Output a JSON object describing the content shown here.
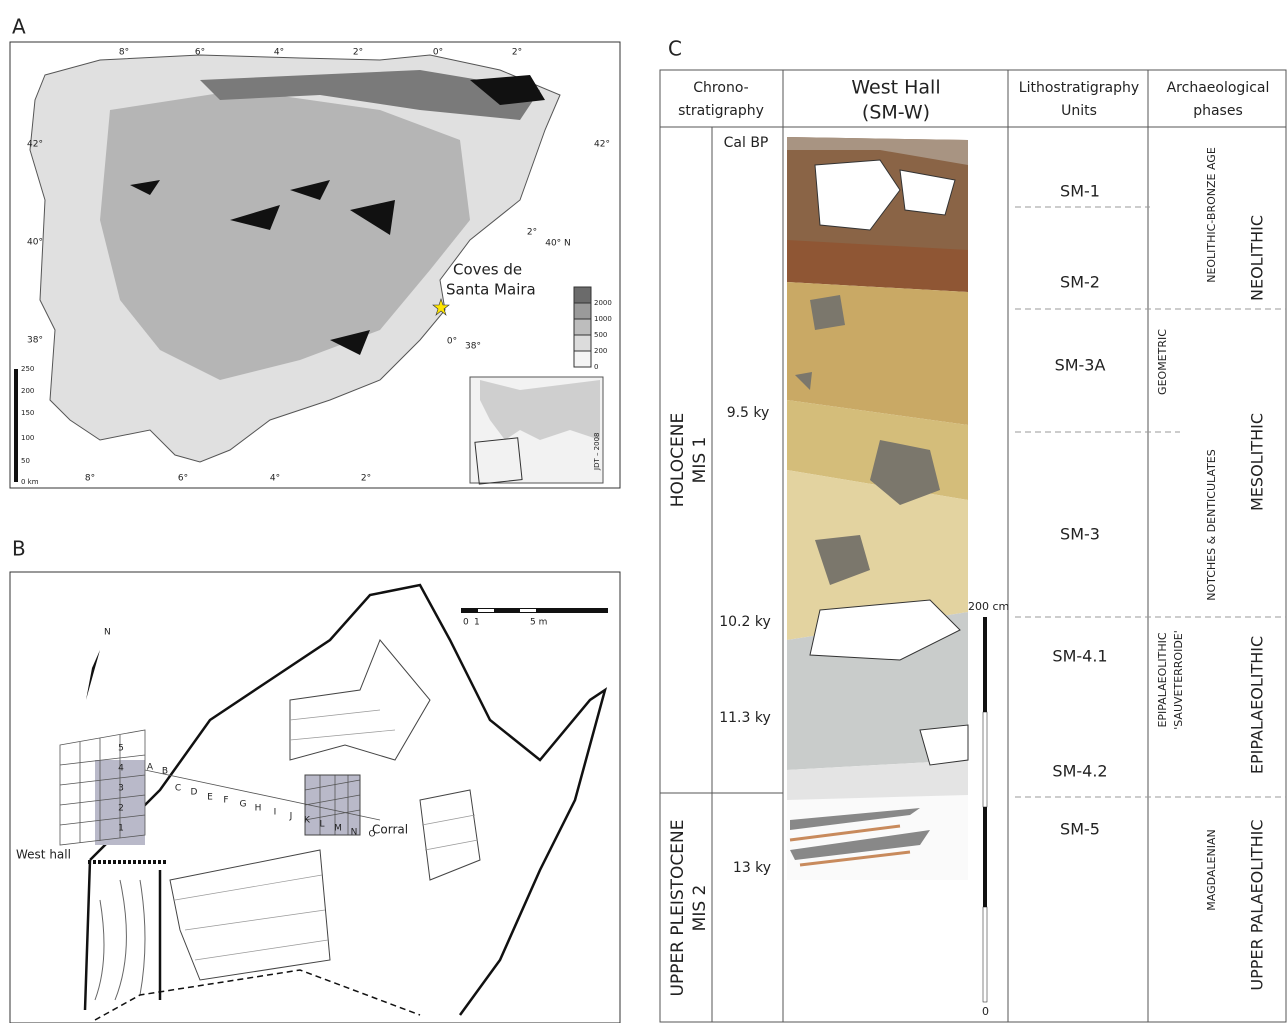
{
  "panel_a": {
    "label": "A",
    "site": [
      "Coves de",
      "Santa Maira"
    ],
    "longitudes_top": [
      "8°",
      "6°",
      "4°",
      "2°",
      "0°",
      "2°"
    ],
    "longitudes_bottom": [
      "8°",
      "6°",
      "4°",
      "2°"
    ],
    "latitudes_left": [
      "42°",
      "40°",
      "38°"
    ],
    "latitude_right": "42°",
    "inset_coords": [
      "2°",
      "40° N",
      "0°",
      "38°"
    ],
    "elevation_legend": [
      "2000",
      "1000",
      "500",
      "200",
      "0"
    ],
    "scale": [
      "250",
      "200",
      "150",
      "100",
      "50",
      "0 km"
    ],
    "credit": "JDT – 2008"
  },
  "panel_b": {
    "label": "B",
    "north": "N",
    "scale": [
      "0",
      "1",
      "5 m"
    ],
    "rows": [
      "5",
      "4",
      "3",
      "2",
      "1"
    ],
    "columns": [
      "A",
      "B",
      "C",
      "D",
      "E",
      "F",
      "G",
      "H",
      "I",
      "J",
      "K",
      "L",
      "M",
      "N",
      "O"
    ],
    "west_hall": "West hall",
    "corral": "Corral"
  },
  "panel_c": {
    "label": "C",
    "headers": {
      "chronostratigraphy": [
        "Chrono-",
        "stratigraphy"
      ],
      "section": [
        "West Hall",
        "(SM-W)"
      ],
      "lithostratigraphy": [
        "Lithostratigraphy",
        "Units"
      ],
      "phases": [
        "Archaeological",
        "phases"
      ]
    },
    "periods": [
      {
        "name": "HOLOCENE",
        "stage": "MIS 1"
      },
      {
        "name": "UPPER PLEISTOCENE",
        "stage": "MIS 2"
      }
    ],
    "age_unit": "Cal BP",
    "ages": [
      "9.5 ky",
      "10.2 ky",
      "11.3 ky",
      "13 ky"
    ],
    "units": [
      "SM-1",
      "SM-2",
      "SM-3A",
      "SM-3",
      "SM-4.1",
      "SM-4.2",
      "SM-5"
    ],
    "industries": [
      "NEOLITHIC-BRONZE AGE",
      "GEOMETRIC",
      "NOTCHES & DENTICULATES",
      "EPIPALAEOLITHIC",
      "'SAUVETERROIDE'",
      "MAGDALENIAN"
    ],
    "cultural_phases": [
      "NEOLITHIC",
      "MESOLITHIC",
      "EPIPALAEOLITHIC",
      "UPPER PALAEOLITHIC"
    ],
    "scale": {
      "top": "200 cm",
      "bottom": "0"
    }
  }
}
